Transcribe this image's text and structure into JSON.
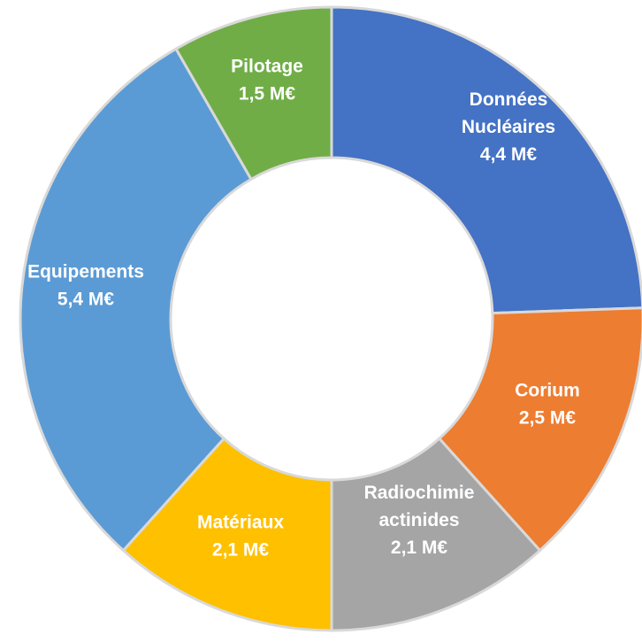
{
  "chart_data": {
    "type": "pie",
    "variant": "donut",
    "unit": "M€",
    "legend": "none",
    "slices": [
      {
        "name": "Données Nucléaires",
        "label_lines": [
          "Données",
          "Nucléaires",
          "4,4 M€"
        ],
        "value": 4.4,
        "color": "#4472c4"
      },
      {
        "name": "Corium",
        "label_lines": [
          "Corium",
          "2,5 M€"
        ],
        "value": 2.5,
        "color": "#ed7d31"
      },
      {
        "name": "Radiochimie actinides",
        "label_lines": [
          "Radiochimie",
          "actinides",
          "2,1 M€"
        ],
        "value": 2.1,
        "color": "#a5a5a5"
      },
      {
        "name": "Matériaux",
        "label_lines": [
          "Matériaux",
          "2,1 M€"
        ],
        "value": 2.1,
        "color": "#ffc000"
      },
      {
        "name": "Equipements",
        "label_lines": [
          "Equipements",
          "5,4 M€"
        ],
        "value": 5.4,
        "color": "#5b9bd5"
      },
      {
        "name": "Pilotage",
        "label_lines": [
          "Pilotage",
          "1,5 M€"
        ],
        "value": 1.5,
        "color": "#70ad47"
      }
    ]
  }
}
